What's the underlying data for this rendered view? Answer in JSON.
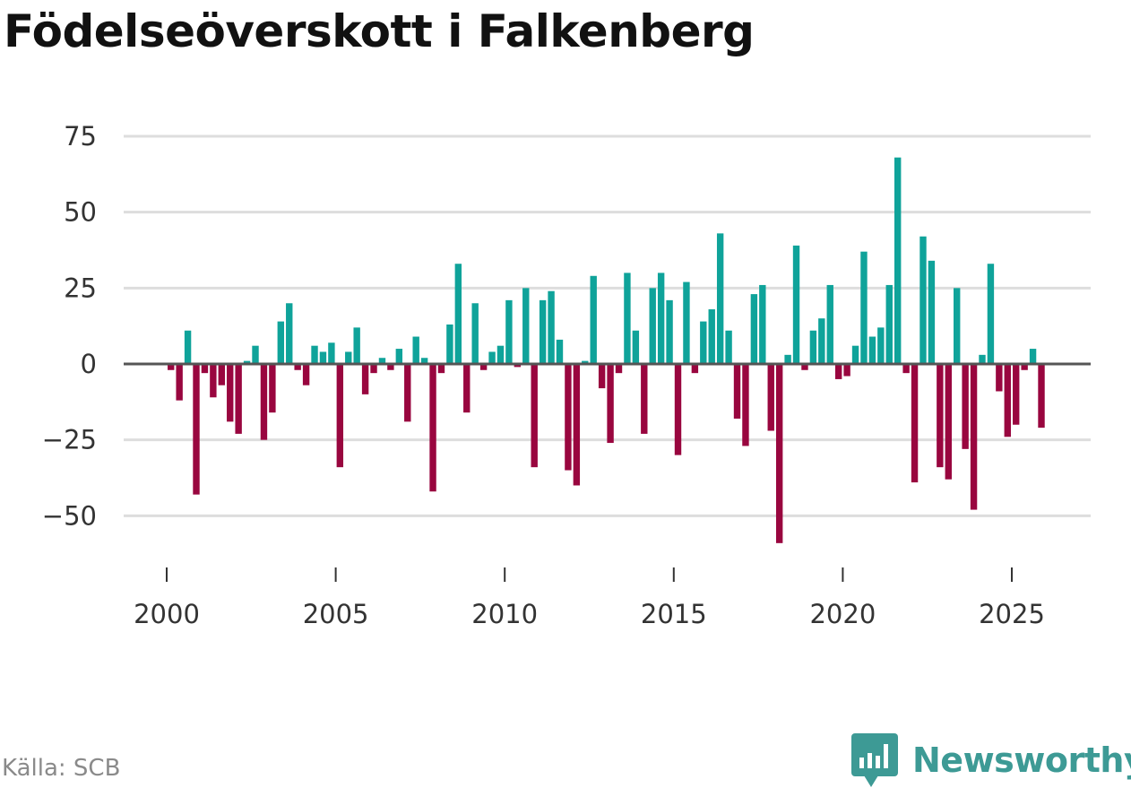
{
  "title": "Födelseöverskott i Falkenberg",
  "source": "Källa: SCB",
  "brand": {
    "name": "Newsworthy",
    "icon": "newsworthy-logo-icon",
    "color": "#3d9a95"
  },
  "colors": {
    "positive": "#0fa39a",
    "negative": "#99063f",
    "grid": "#dddddd",
    "baseline": "#555555"
  },
  "chart_data": {
    "type": "bar",
    "title": "Födelseöverskott i Falkenberg",
    "xlabel": "",
    "ylabel": "",
    "ylim": [
      -60,
      80
    ],
    "xlim": [
      1999.5,
      2027.3
    ],
    "yticks": [
      -50,
      -25,
      0,
      25,
      50,
      75
    ],
    "ytick_labels": [
      "−50",
      "−25",
      "0",
      "25",
      "50",
      "75"
    ],
    "xticks": [
      2000,
      2005,
      2010,
      2015,
      2020,
      2025
    ],
    "xtick_labels": [
      "2000",
      "2005",
      "2010",
      "2015",
      "2020",
      "2025"
    ],
    "x": [
      2000.125,
      2000.375,
      2000.625,
      2000.875,
      2001.125,
      2001.375,
      2001.625,
      2001.875,
      2002.125,
      2002.375,
      2002.625,
      2002.875,
      2003.125,
      2003.375,
      2003.625,
      2003.875,
      2004.125,
      2004.375,
      2004.625,
      2004.875,
      2005.125,
      2005.375,
      2005.625,
      2005.875,
      2006.125,
      2006.375,
      2006.625,
      2006.875,
      2007.125,
      2007.375,
      2007.625,
      2007.875,
      2008.125,
      2008.375,
      2008.625,
      2008.875,
      2009.125,
      2009.375,
      2009.625,
      2009.875,
      2010.125,
      2010.375,
      2010.625,
      2010.875,
      2011.125,
      2011.375,
      2011.625,
      2011.875,
      2012.125,
      2012.375,
      2012.625,
      2012.875,
      2013.125,
      2013.375,
      2013.625,
      2013.875,
      2014.125,
      2014.375,
      2014.625,
      2014.875,
      2015.125,
      2015.375,
      2015.625,
      2015.875,
      2016.125,
      2016.375,
      2016.625,
      2016.875,
      2017.125,
      2017.375,
      2017.625,
      2017.875,
      2018.125,
      2018.375,
      2018.625,
      2018.875,
      2019.125,
      2019.375,
      2019.625,
      2019.875,
      2020.125,
      2020.375,
      2020.625,
      2020.875,
      2021.125,
      2021.375,
      2021.625,
      2021.875,
      2022.125,
      2022.375,
      2022.625,
      2022.875,
      2023.125,
      2023.375,
      2023.625,
      2023.875,
      2024.125,
      2024.375,
      2024.625,
      2024.875,
      2025.125,
      2025.375,
      2025.625,
      2025.875
    ],
    "values": [
      -2,
      -12,
      11,
      -43,
      -3,
      -11,
      -7,
      -19,
      -23,
      1,
      6,
      -25,
      -16,
      14,
      20,
      -2,
      -7,
      6,
      4,
      7,
      -34,
      4,
      12,
      -10,
      -3,
      2,
      -2,
      5,
      -19,
      9,
      2,
      -42,
      -3,
      13,
      33,
      -16,
      20,
      -2,
      4,
      6,
      21,
      -1,
      25,
      -34,
      21,
      24,
      8,
      -35,
      -40,
      1,
      29,
      -8,
      -26,
      -3,
      30,
      11,
      -23,
      25,
      30,
      21,
      -30,
      27,
      -3,
      14,
      18,
      43,
      11,
      -18,
      -27,
      23,
      26,
      -22,
      -59,
      3,
      39,
      -2,
      11,
      15,
      26,
      -5,
      -4,
      6,
      37,
      9,
      12,
      26,
      68,
      -3,
      -39,
      42,
      34,
      -34,
      -38,
      25,
      -28,
      -48,
      3,
      33,
      -9,
      -24,
      -20,
      -2,
      5,
      -21
    ]
  }
}
